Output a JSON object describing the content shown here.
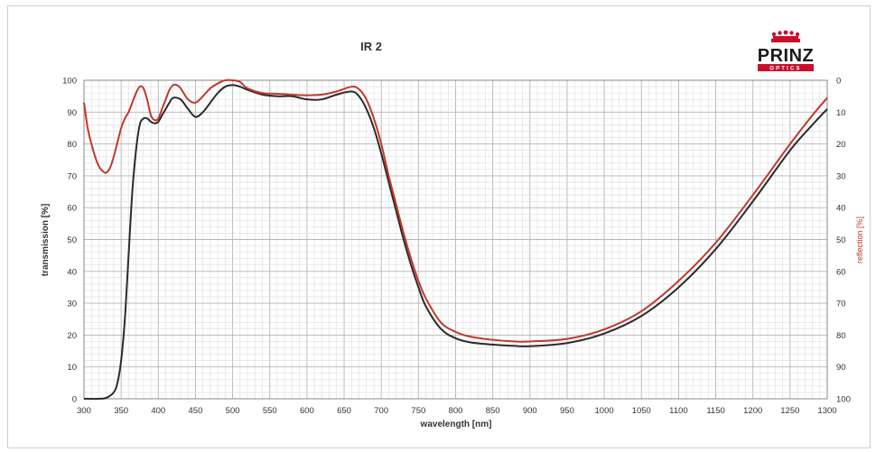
{
  "logo": {
    "brand": "PRINZ",
    "sub": "OPTICS",
    "red": "#c8102e"
  },
  "chart_data": {
    "type": "line",
    "title": "IR 2",
    "xlabel": "wavelength [nm]",
    "ylabel": "transmission [%]",
    "y2label": "reflection [%]",
    "xlim": [
      300,
      1300
    ],
    "ylim": [
      0,
      100
    ],
    "y2lim": [
      100,
      0
    ],
    "grid": true,
    "x_ticks": [
      "300",
      "350",
      "400",
      "450",
      "500",
      "550",
      "600",
      "650",
      "700",
      "750",
      "800",
      "850",
      "900",
      "950",
      "1000",
      "1050",
      "1100",
      "1150",
      "1200",
      "1250",
      "1300"
    ],
    "y_ticks": [
      "0",
      "10",
      "20",
      "30",
      "40",
      "50",
      "60",
      "70",
      "80",
      "90",
      "100"
    ],
    "y2_ticks": [
      "100",
      "90",
      "80",
      "70",
      "60",
      "50",
      "40",
      "30",
      "20",
      "10",
      "0"
    ],
    "series": [
      {
        "color": "#2b2b2b",
        "x": [
          300,
          320,
          330,
          340,
          345,
          350,
          355,
          360,
          365,
          370,
          375,
          380,
          385,
          390,
          395,
          400,
          405,
          410,
          415,
          420,
          430,
          440,
          450,
          460,
          470,
          480,
          490,
          500,
          510,
          520,
          540,
          560,
          580,
          600,
          620,
          640,
          660,
          670,
          680,
          690,
          700,
          710,
          720,
          730,
          740,
          750,
          760,
          780,
          800,
          820,
          850,
          880,
          900,
          950,
          1000,
          1050,
          1100,
          1150,
          1200,
          1250,
          1280,
          1300
        ],
        "y": [
          0,
          0,
          0.3,
          2,
          5,
          12,
          25,
          45,
          65,
          78,
          86,
          88,
          88,
          87,
          86.5,
          87,
          89,
          91,
          93,
          94.5,
          94,
          91,
          88.5,
          90,
          93,
          96,
          98,
          98.5,
          98,
          97,
          95.5,
          95,
          95,
          94,
          94,
          95.5,
          96.5,
          95,
          91,
          85,
          77,
          68,
          59,
          50,
          42,
          35,
          29,
          22,
          19,
          17.7,
          17,
          16.6,
          16.5,
          17.5,
          20.5,
          26,
          35,
          47,
          62,
          78,
          86,
          91
        ]
      },
      {
        "color": "#c0392b",
        "x": [
          300,
          305,
          310,
          315,
          320,
          325,
          330,
          335,
          340,
          345,
          350,
          355,
          360,
          365,
          370,
          375,
          380,
          385,
          390,
          395,
          400,
          405,
          410,
          415,
          420,
          425,
          430,
          440,
          450,
          460,
          470,
          480,
          490,
          500,
          510,
          520,
          540,
          560,
          580,
          600,
          620,
          640,
          660,
          670,
          680,
          690,
          700,
          710,
          720,
          730,
          740,
          750,
          760,
          780,
          800,
          820,
          850,
          880,
          900,
          950,
          1000,
          1050,
          1100,
          1150,
          1200,
          1250,
          1280,
          1300
        ],
        "y": [
          93,
          85,
          80,
          76,
          73,
          71.5,
          71,
          72.5,
          76,
          80.5,
          85,
          88,
          90,
          93,
          96,
          98,
          97.5,
          94,
          89,
          87.5,
          88,
          91,
          94,
          97,
          98.5,
          98.5,
          97.5,
          94,
          93,
          95,
          97.5,
          99,
          100,
          100,
          99.5,
          97.5,
          96,
          95.8,
          95.5,
          95.3,
          95.5,
          96.5,
          98,
          97.2,
          94,
          88,
          80,
          70,
          61,
          52,
          44,
          37,
          31.5,
          24,
          21,
          19.5,
          18.5,
          18,
          18,
          18.8,
          21.8,
          27.5,
          37,
          49,
          64,
          80,
          89,
          94.5
        ]
      }
    ]
  }
}
